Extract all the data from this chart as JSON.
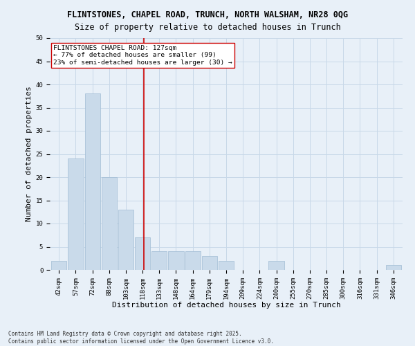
{
  "title_line1": "FLINTSTONES, CHAPEL ROAD, TRUNCH, NORTH WALSHAM, NR28 0QG",
  "title_line2": "Size of property relative to detached houses in Trunch",
  "xlabel": "Distribution of detached houses by size in Trunch",
  "ylabel": "Number of detached properties",
  "categories": [
    "42sqm",
    "57sqm",
    "72sqm",
    "88sqm",
    "103sqm",
    "118sqm",
    "133sqm",
    "148sqm",
    "164sqm",
    "179sqm",
    "194sqm",
    "209sqm",
    "224sqm",
    "240sqm",
    "255sqm",
    "270sqm",
    "285sqm",
    "300sqm",
    "316sqm",
    "331sqm",
    "346sqm"
  ],
  "values": [
    2,
    24,
    38,
    20,
    13,
    7,
    4,
    4,
    4,
    3,
    2,
    0,
    0,
    2,
    0,
    0,
    0,
    0,
    0,
    0,
    1
  ],
  "bar_color": "#c9daea",
  "bar_edge_color": "#a0bcd4",
  "grid_color": "#c8d8e8",
  "bg_color": "#e8f0f8",
  "vline_color": "#cc0000",
  "annotation_text": "FLINTSTONES CHAPEL ROAD: 127sqm\n← 77% of detached houses are smaller (99)\n23% of semi-detached houses are larger (30) →",
  "annotation_box_color": "#ffffff",
  "annotation_box_edge": "#cc0000",
  "annotation_fontsize": 6.8,
  "ylim": [
    0,
    50
  ],
  "yticks": [
    0,
    5,
    10,
    15,
    20,
    25,
    30,
    35,
    40,
    45,
    50
  ],
  "footnote": "Contains HM Land Registry data © Crown copyright and database right 2025.\nContains public sector information licensed under the Open Government Licence v3.0.",
  "title_fontsize": 8.5,
  "subtitle_fontsize": 8.5,
  "tick_fontsize": 6.5,
  "label_fontsize": 8,
  "footnote_fontsize": 5.5
}
